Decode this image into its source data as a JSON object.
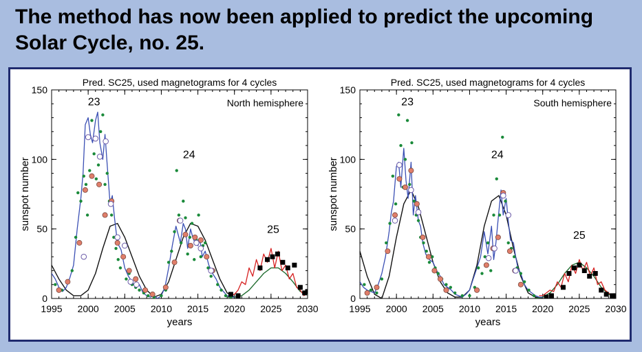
{
  "slide": {
    "title_line1": "The method has now been applied to predict the upcoming",
    "title_line2": "Solar Cycle, no. 25."
  },
  "colors": {
    "background": "#a9bde0",
    "frame": "#1f2a6e",
    "observed": "#3a4fb4",
    "prediction": "#d62020",
    "fit": "#1f6b2e",
    "dots": "#1a8a3a",
    "red_circles": "#e07e6a",
    "white_circles": "#ffffff",
    "squares": "#000000"
  },
  "chart_data": [
    {
      "type": "line",
      "title": "Pred. SC25, used magnetograms for 4 cycles",
      "hemisphere_label": "North hemisphere",
      "xlabel": "years",
      "ylabel": "sunspot number",
      "xlim": [
        1995,
        2030
      ],
      "ylim": [
        0,
        150
      ],
      "xticks": [
        1995,
        2000,
        2005,
        2010,
        2015,
        2020,
        2025,
        2030
      ],
      "yticks": [
        0,
        50,
        100,
        150
      ],
      "cycle_labels": [
        {
          "text": "23",
          "x": 2000.8,
          "y": 139
        },
        {
          "text": "24",
          "x": 2013.8,
          "y": 101
        },
        {
          "text": "25",
          "x": 2025.3,
          "y": 47
        }
      ],
      "series": [
        {
          "name": "observed monthly",
          "style": "blue-line",
          "x": [
            1995,
            1995.5,
            1996,
            1996.5,
            1997,
            1997.5,
            1998,
            1998.5,
            1999,
            1999.3,
            1999.6,
            2000,
            2000.3,
            2000.6,
            2001,
            2001.3,
            2001.6,
            2002,
            2002.3,
            2002.6,
            2003,
            2003.3,
            2003.6,
            2004,
            2004.5,
            2005,
            2005.5,
            2006,
            2006.5,
            2007,
            2007.5,
            2008,
            2008.5,
            2009,
            2009.5,
            2010,
            2010.5,
            2011,
            2011.5,
            2012,
            2012.3,
            2012.6,
            2013,
            2013.3,
            2013.6,
            2014,
            2014.3,
            2014.6,
            2015,
            2015.3,
            2015.6,
            2016,
            2016.5,
            2017,
            2017.5,
            2018,
            2018.5,
            2019,
            2019.5,
            2020
          ],
          "y": [
            18,
            14,
            8,
            5,
            8,
            15,
            24,
            50,
            72,
            90,
            125,
            130,
            118,
            112,
            128,
            134,
            112,
            100,
            118,
            96,
            68,
            74,
            58,
            40,
            35,
            22,
            16,
            12,
            8,
            10,
            4,
            2,
            1,
            2,
            0,
            2,
            8,
            22,
            38,
            52,
            46,
            40,
            54,
            50,
            36,
            50,
            44,
            40,
            38,
            42,
            30,
            34,
            24,
            18,
            14,
            8,
            5,
            2,
            1,
            1
          ]
        },
        {
          "name": "SC25 prediction",
          "style": "red-line",
          "x": [
            2019.5,
            2020,
            2020.5,
            2021,
            2021.5,
            2022,
            2022.5,
            2023,
            2023.5,
            2024,
            2024.5,
            2025,
            2025.5,
            2026,
            2026.5,
            2027,
            2027.5,
            2028,
            2028.5,
            2029,
            2029.5,
            2030
          ],
          "y": [
            2,
            3,
            6,
            12,
            10,
            22,
            16,
            28,
            20,
            32,
            26,
            36,
            22,
            34,
            20,
            24,
            14,
            18,
            8,
            6,
            2,
            4
          ]
        },
        {
          "name": "model fit (black)",
          "style": "black-curve",
          "x": [
            1995,
            1996,
            1997,
            1998,
            1999,
            2000,
            2001,
            2002,
            2003,
            2004,
            2005,
            2006,
            2007,
            2008,
            2009,
            2010,
            2011,
            2012,
            2013,
            2014,
            2015,
            2016,
            2017,
            2018,
            2019,
            2020
          ],
          "y": [
            24,
            14,
            6,
            2,
            2,
            6,
            18,
            36,
            52,
            54,
            44,
            30,
            16,
            6,
            1,
            3,
            12,
            28,
            44,
            54,
            52,
            42,
            28,
            14,
            4,
            1
          ]
        },
        {
          "name": "model fit (green)",
          "style": "green-curve",
          "x": [
            2019,
            2020,
            2021,
            2022,
            2023,
            2024,
            2025,
            2026,
            2027,
            2028,
            2029,
            2030
          ],
          "y": [
            1,
            1,
            2,
            6,
            12,
            18,
            22,
            22,
            18,
            12,
            5,
            3
          ]
        },
        {
          "name": "scatter dots",
          "style": "green-dots",
          "x": [
            1995.5,
            1996.4,
            1997.2,
            1997.8,
            1998.3,
            1998.6,
            1999.0,
            1999.4,
            1999.7,
            1999.9,
            2000.2,
            2000.5,
            2000.8,
            2001.1,
            2001.4,
            2001.7,
            2002.0,
            2002.3,
            2002.6,
            2002.9,
            2003.2,
            2003.5,
            2003.8,
            2004.1,
            2004.4,
            2004.8,
            2005.2,
            2005.6,
            2006.0,
            2006.5,
            2007.0,
            2007.6,
            2008.2,
            2009.0,
            2010.0,
            2010.6,
            2011.0,
            2011.4,
            2011.8,
            2012.1,
            2012.4,
            2012.7,
            2013.0,
            2013.3,
            2013.6,
            2013.9,
            2014.2,
            2014.5,
            2014.8,
            2015.1,
            2015.4,
            2015.7,
            2016.0,
            2016.4,
            2016.8,
            2017.2,
            2017.7,
            2018.2,
            2018.8,
            2019.5
          ],
          "y": [
            10,
            6,
            12,
            20,
            44,
            76,
            70,
            88,
            82,
            60,
            92,
            128,
            104,
            86,
            96,
            120,
            132,
            82,
            90,
            70,
            60,
            44,
            36,
            28,
            22,
            30,
            14,
            18,
            10,
            8,
            6,
            4,
            2,
            1,
            2,
            6,
            26,
            34,
            48,
            92,
            60,
            40,
            70,
            58,
            32,
            44,
            54,
            28,
            42,
            60,
            30,
            38,
            40,
            22,
            16,
            20,
            10,
            6,
            2,
            1
          ]
        },
        {
          "name": "red circles",
          "style": "red-circles",
          "x": [
            1996,
            1997.2,
            1998.8,
            1999.6,
            2000.5,
            2001.5,
            2002.3,
            2003.2,
            2004.0,
            2004.8,
            2005.6,
            2006.5,
            2007.8,
            2008.8,
            2010.6,
            2011.8,
            2012.5,
            2013.3,
            2014.0,
            2014.6,
            2015.4,
            2016.2,
            2017.0
          ],
          "y": [
            6,
            12,
            40,
            78,
            88,
            82,
            60,
            70,
            40,
            30,
            20,
            14,
            6,
            3,
            8,
            26,
            56,
            46,
            38,
            44,
            42,
            30,
            20
          ]
        },
        {
          "name": "white circles",
          "style": "white-circles",
          "x": [
            1999.4,
            2000.0,
            2001.0,
            2001.6,
            2002.4,
            2003.1,
            2004.0,
            2005.0,
            2005.8,
            2006.6,
            2012.6,
            2014.8,
            2015.4,
            2016.8
          ],
          "y": [
            30,
            116,
            115,
            102,
            113,
            68,
            44,
            38,
            12,
            10,
            56,
            40,
            36,
            20
          ]
        },
        {
          "name": "squares",
          "style": "black-squares",
          "x": [
            2019.5,
            2020.5,
            2023.5,
            2024.5,
            2025.2,
            2025.9,
            2026.6,
            2027.3,
            2028.2,
            2029.0,
            2029.6,
            2030.0
          ],
          "y": [
            3,
            2,
            22,
            28,
            30,
            32,
            26,
            22,
            24,
            8,
            4,
            5
          ]
        }
      ]
    },
    {
      "type": "line",
      "title": "Pred. SC25, used magnetograms for 4 cycles",
      "hemisphere_label": "South hemisphere",
      "xlabel": "years",
      "ylabel": "sunspot number",
      "xlim": [
        1995,
        2030
      ],
      "ylim": [
        0,
        150
      ],
      "xticks": [
        1995,
        2000,
        2005,
        2010,
        2015,
        2020,
        2025,
        2030
      ],
      "yticks": [
        0,
        50,
        100,
        150
      ],
      "cycle_labels": [
        {
          "text": "23",
          "x": 2001.5,
          "y": 139
        },
        {
          "text": "24",
          "x": 2013.8,
          "y": 101
        },
        {
          "text": "25",
          "x": 2025,
          "y": 43
        }
      ],
      "series": [
        {
          "name": "observed monthly",
          "style": "blue-line",
          "x": [
            1995,
            1995.5,
            1996,
            1996.5,
            1997,
            1997.5,
            1998,
            1998.5,
            1999,
            1999.3,
            1999.6,
            2000,
            2000.3,
            2000.6,
            2001,
            2001.3,
            2001.6,
            2002,
            2002.3,
            2002.6,
            2003,
            2003.3,
            2003.6,
            2004,
            2004.5,
            2005,
            2005.5,
            2006,
            2006.5,
            2007,
            2007.5,
            2008,
            2008.5,
            2009,
            2009.5,
            2010,
            2010.5,
            2011,
            2011.5,
            2012,
            2012.5,
            2013,
            2013.3,
            2013.6,
            2014,
            2014.3,
            2014.6,
            2015,
            2015.3,
            2015.6,
            2016,
            2016.3,
            2016.6,
            2017,
            2017.5,
            2018,
            2018.5,
            2019,
            2019.5,
            2020
          ],
          "y": [
            12,
            8,
            6,
            5,
            4,
            10,
            18,
            30,
            48,
            62,
            70,
            95,
            98,
            80,
            108,
            85,
            72,
            98,
            60,
            74,
            56,
            52,
            40,
            32,
            28,
            26,
            20,
            16,
            10,
            8,
            6,
            3,
            2,
            1,
            3,
            6,
            14,
            22,
            30,
            48,
            32,
            52,
            28,
            40,
            62,
            78,
            60,
            72,
            55,
            42,
            40,
            30,
            22,
            18,
            10,
            6,
            4,
            2,
            1,
            1
          ]
        },
        {
          "name": "SC25 prediction",
          "style": "red-line",
          "x": [
            2019.5,
            2020,
            2020.5,
            2021,
            2021.5,
            2022,
            2022.5,
            2023,
            2023.5,
            2024,
            2024.5,
            2025,
            2025.5,
            2026,
            2026.5,
            2027,
            2027.5,
            2028,
            2028.5,
            2029,
            2029.5,
            2030
          ],
          "y": [
            2,
            2,
            4,
            6,
            5,
            12,
            8,
            18,
            12,
            24,
            18,
            28,
            20,
            26,
            16,
            22,
            10,
            12,
            6,
            4,
            2,
            2
          ]
        },
        {
          "name": "model fit (black)",
          "style": "black-curve",
          "x": [
            1995,
            1996,
            1997,
            1998,
            1999,
            2000,
            2001,
            2002,
            2003,
            2004,
            2005,
            2006,
            2007,
            2008,
            2009,
            2010,
            2011,
            2012,
            2013,
            2014,
            2015,
            2016,
            2017,
            2018,
            2019,
            2020
          ],
          "y": [
            34,
            16,
            3,
            0,
            16,
            44,
            68,
            78,
            66,
            46,
            26,
            12,
            4,
            1,
            1,
            6,
            24,
            52,
            70,
            74,
            60,
            36,
            16,
            4,
            1,
            0
          ]
        },
        {
          "name": "model fit (green)",
          "style": "green-curve",
          "x": [
            2019,
            2020,
            2021,
            2022,
            2023,
            2024,
            2025,
            2026,
            2027,
            2028,
            2029,
            2030
          ],
          "y": [
            0,
            1,
            4,
            10,
            18,
            24,
            26,
            22,
            16,
            8,
            3,
            1
          ]
        },
        {
          "name": "scatter dots",
          "style": "green-dots",
          "x": [
            1995.6,
            1996.5,
            1997.3,
            1998.0,
            1998.6,
            1999.1,
            1999.5,
            1999.9,
            2000.3,
            2000.6,
            2000.9,
            2001.2,
            2001.5,
            2001.8,
            2002.1,
            2002.4,
            2002.7,
            2003.0,
            2003.3,
            2003.7,
            2004.1,
            2004.5,
            2004.9,
            2005.3,
            2005.7,
            2006.2,
            2006.8,
            2007.4,
            2008.0,
            2009.0,
            2010.0,
            2010.7,
            2011.2,
            2011.7,
            2012.1,
            2012.5,
            2012.9,
            2013.3,
            2013.7,
            2014.1,
            2014.5,
            2014.9,
            2015.3,
            2015.7,
            2016.1,
            2016.5,
            2017.0,
            2017.5,
            2018.1,
            2018.8
          ],
          "y": [
            10,
            6,
            4,
            14,
            40,
            54,
            88,
            68,
            132,
            110,
            80,
            100,
            128,
            82,
            112,
            70,
            60,
            56,
            44,
            40,
            34,
            26,
            30,
            22,
            18,
            14,
            10,
            8,
            4,
            2,
            2,
            8,
            22,
            18,
            30,
            40,
            20,
            60,
            86,
            60,
            116,
            70,
            40,
            36,
            30,
            22,
            18,
            12,
            6,
            2
          ]
        },
        {
          "name": "red circles",
          "style": "red-circles",
          "x": [
            1996,
            1997.3,
            1998.8,
            1999.8,
            2000.4,
            2001.2,
            2002.0,
            2002.8,
            2003.6,
            2004.4,
            2005.2,
            2006.0,
            2006.8,
            2011.0,
            2012.3,
            2013.2,
            2013.9,
            2014.6,
            2015.5,
            2016.2,
            2017.0
          ],
          "y": [
            4,
            8,
            34,
            60,
            86,
            80,
            92,
            68,
            44,
            30,
            20,
            14,
            6,
            6,
            24,
            36,
            44,
            76,
            34,
            20,
            10
          ]
        },
        {
          "name": "white circles",
          "style": "white-circles",
          "x": [
            1999.8,
            2000.4,
            2002.0,
            2003.0,
            2012.6,
            2013.4,
            2014.6,
            2015.3,
            2016.3
          ],
          "y": [
            56,
            96,
            78,
            62,
            29,
            36,
            74,
            60,
            20
          ]
        },
        {
          "name": "squares",
          "style": "black-squares",
          "x": [
            2020.5,
            2021.2,
            2022.8,
            2023.6,
            2024.3,
            2025.0,
            2025.7,
            2026.4,
            2027.2,
            2028.0,
            2028.7,
            2029.5,
            2030.0
          ],
          "y": [
            1,
            2,
            8,
            18,
            22,
            24,
            20,
            16,
            18,
            6,
            3,
            2,
            2
          ]
        }
      ]
    }
  ]
}
